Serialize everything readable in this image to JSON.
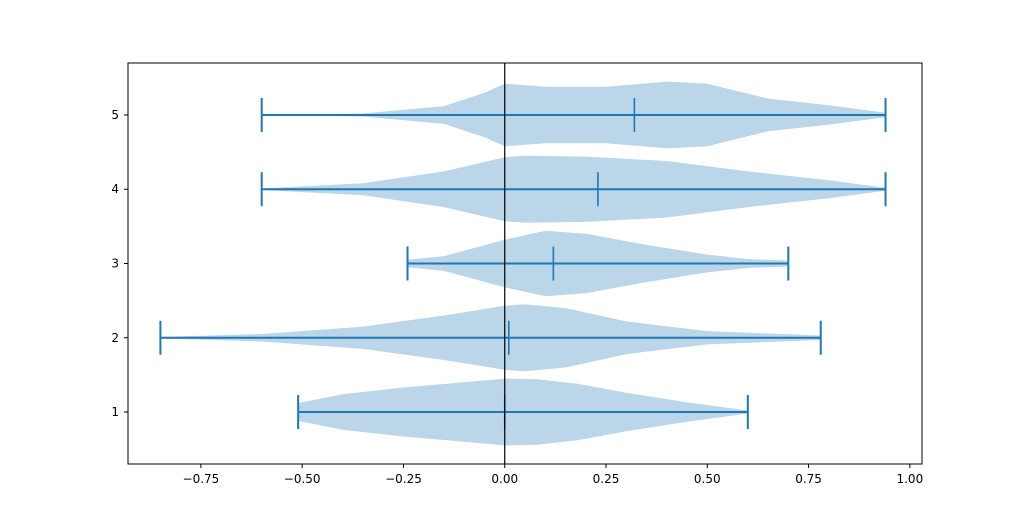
{
  "chart_data": {
    "type": "violin",
    "orientation": "horizontal",
    "xlim": [
      -0.93,
      1.03
    ],
    "ylim": [
      0.3,
      5.7
    ],
    "x_ticks": [
      -0.75,
      -0.5,
      -0.25,
      0.0,
      0.25,
      0.5,
      0.75,
      1.0
    ],
    "x_tick_labels": [
      "−0.75",
      "−0.50",
      "−0.25",
      "0.00",
      "0.25",
      "0.50",
      "0.75",
      "1.00"
    ],
    "y_ticks": [
      1,
      2,
      3,
      4,
      5
    ],
    "y_tick_labels": [
      "1",
      "2",
      "3",
      "4",
      "5"
    ],
    "reference_line_x": 0.0,
    "grid": false,
    "colors": {
      "body": "#1f77b4",
      "body_alpha": 0.3,
      "lines": "#1f77b4",
      "reference": "#000000"
    },
    "violins": [
      {
        "position": 1,
        "min": -0.51,
        "max": 0.6,
        "median": 0.0,
        "density": [
          [
            -0.51,
            0.12
          ],
          [
            -0.4,
            0.24
          ],
          [
            -0.25,
            0.33
          ],
          [
            -0.1,
            0.4
          ],
          [
            0.0,
            0.45
          ],
          [
            0.08,
            0.44
          ],
          [
            0.18,
            0.38
          ],
          [
            0.3,
            0.26
          ],
          [
            0.45,
            0.13
          ],
          [
            0.6,
            0.02
          ]
        ]
      },
      {
        "position": 2,
        "min": -0.85,
        "max": 0.78,
        "median": 0.01,
        "density": [
          [
            -0.85,
            0.01
          ],
          [
            -0.6,
            0.05
          ],
          [
            -0.35,
            0.15
          ],
          [
            -0.15,
            0.3
          ],
          [
            0.0,
            0.43
          ],
          [
            0.05,
            0.45
          ],
          [
            0.15,
            0.4
          ],
          [
            0.3,
            0.22
          ],
          [
            0.5,
            0.09
          ],
          [
            0.78,
            0.03
          ]
        ]
      },
      {
        "position": 3,
        "min": -0.24,
        "max": 0.7,
        "median": 0.12,
        "density": [
          [
            -0.24,
            0.05
          ],
          [
            -0.15,
            0.1
          ],
          [
            0.0,
            0.32
          ],
          [
            0.1,
            0.44
          ],
          [
            0.2,
            0.4
          ],
          [
            0.35,
            0.25
          ],
          [
            0.5,
            0.12
          ],
          [
            0.6,
            0.06
          ],
          [
            0.7,
            0.04
          ]
        ]
      },
      {
        "position": 4,
        "min": -0.6,
        "max": 0.94,
        "median": 0.23,
        "density": [
          [
            -0.6,
            0.01
          ],
          [
            -0.35,
            0.08
          ],
          [
            -0.15,
            0.24
          ],
          [
            0.0,
            0.43
          ],
          [
            0.05,
            0.45
          ],
          [
            0.2,
            0.44
          ],
          [
            0.4,
            0.38
          ],
          [
            0.6,
            0.24
          ],
          [
            0.8,
            0.12
          ],
          [
            0.94,
            0.02
          ]
        ]
      },
      {
        "position": 5,
        "min": -0.6,
        "max": 0.94,
        "median": 0.32,
        "density": [
          [
            -0.6,
            0.0
          ],
          [
            -0.35,
            0.02
          ],
          [
            -0.15,
            0.12
          ],
          [
            -0.05,
            0.3
          ],
          [
            0.0,
            0.42
          ],
          [
            0.1,
            0.38
          ],
          [
            0.25,
            0.38
          ],
          [
            0.4,
            0.45
          ],
          [
            0.5,
            0.42
          ],
          [
            0.65,
            0.22
          ],
          [
            0.8,
            0.13
          ],
          [
            0.94,
            0.03
          ]
        ]
      }
    ]
  }
}
